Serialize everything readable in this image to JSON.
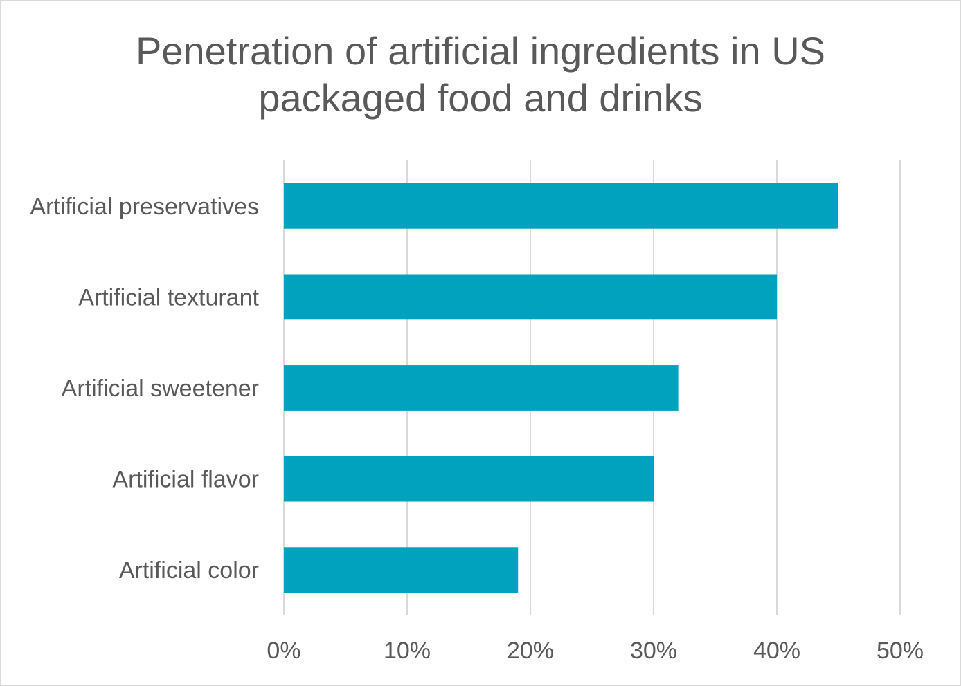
{
  "chart_data": {
    "type": "bar",
    "orientation": "horizontal",
    "title": "Penetration of artificial ingredients in US packaged food and drinks",
    "categories": [
      "Artificial preservatives",
      "Artificial texturant",
      "Artificial sweetener",
      "Artificial flavor",
      "Artificial color"
    ],
    "values": [
      45,
      40,
      32,
      30,
      19
    ],
    "xlim": [
      0,
      50
    ],
    "x_ticks": [
      0,
      10,
      20,
      30,
      40,
      50
    ],
    "x_tick_labels": [
      "0%",
      "10%",
      "20%",
      "30%",
      "40%",
      "50%"
    ],
    "xlabel": "",
    "ylabel": "",
    "grid": true,
    "legend": "none",
    "bar_color": "#00a2bd",
    "grid_color": "#d9d9d9",
    "text_color": "#595959"
  }
}
